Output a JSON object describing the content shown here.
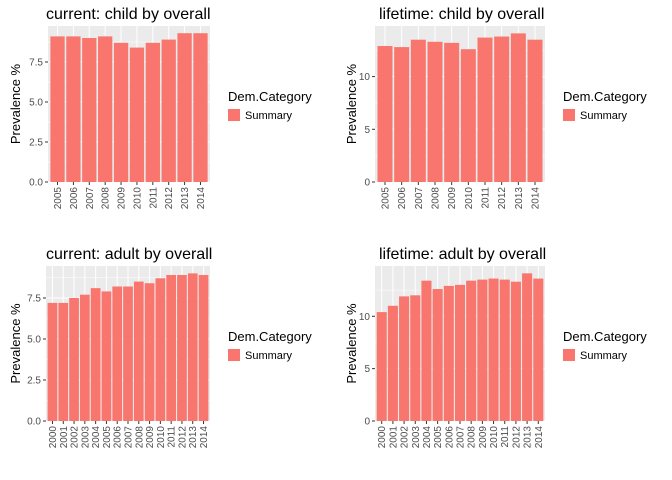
{
  "colors": {
    "bar": "#F8766D",
    "panel_bg": "#EBEBEB",
    "grid": "#FFFFFF",
    "tick": "#333333"
  },
  "chart_data": [
    {
      "type": "bar",
      "title": "current: child by overall",
      "xlabel": "",
      "ylabel": "Prevalence %",
      "categories": [
        "2005",
        "2006",
        "2007",
        "2008",
        "2009",
        "2010",
        "2011",
        "2012",
        "2013",
        "2014"
      ],
      "series": [
        {
          "name": "Summary",
          "values": [
            9.1,
            9.1,
            9.0,
            9.1,
            8.7,
            8.4,
            8.7,
            8.9,
            9.3,
            9.3
          ]
        }
      ],
      "yticks": [
        0,
        2.5,
        5,
        7.5
      ],
      "ytick_labels": [
        "0.0",
        "2.5",
        "5.0",
        "7.5"
      ],
      "ylim": [
        0,
        9.75
      ],
      "legend_title": "Dem.Category",
      "legend_position": "right",
      "grid": true
    },
    {
      "type": "bar",
      "title": "lifetime: child by overall",
      "xlabel": "",
      "ylabel": "Prevalence %",
      "categories": [
        "2005",
        "2006",
        "2007",
        "2008",
        "2009",
        "2010",
        "2011",
        "2012",
        "2013",
        "2014"
      ],
      "series": [
        {
          "name": "Summary",
          "values": [
            12.9,
            12.8,
            13.5,
            13.3,
            13.2,
            12.6,
            13.7,
            13.8,
            14.1,
            13.5
          ]
        }
      ],
      "yticks": [
        0,
        5,
        10
      ],
      "ytick_labels": [
        "0",
        "5",
        "10"
      ],
      "ylim": [
        0,
        14.8
      ],
      "legend_title": "Dem.Category",
      "legend_position": "right",
      "grid": true
    },
    {
      "type": "bar",
      "title": "current: adult by overall",
      "xlabel": "",
      "ylabel": "Prevalence %",
      "categories": [
        "2000",
        "2001",
        "2002",
        "2003",
        "2004",
        "2005",
        "2006",
        "2007",
        "2008",
        "2009",
        "2010",
        "2011",
        "2012",
        "2013",
        "2014"
      ],
      "series": [
        {
          "name": "Summary",
          "values": [
            7.2,
            7.2,
            7.5,
            7.7,
            8.1,
            7.9,
            8.2,
            8.2,
            8.5,
            8.4,
            8.7,
            8.9,
            8.9,
            9.0,
            8.9
          ]
        }
      ],
      "yticks": [
        0,
        2.5,
        5,
        7.5
      ],
      "ytick_labels": [
        "0.0",
        "2.5",
        "5.0",
        "7.5"
      ],
      "ylim": [
        0,
        9.45
      ],
      "legend_title": "Dem.Category",
      "legend_position": "right",
      "grid": true
    },
    {
      "type": "bar",
      "title": "lifetime: adult by overall",
      "xlabel": "",
      "ylabel": "Prevalence %",
      "categories": [
        "2000",
        "2001",
        "2002",
        "2003",
        "2004",
        "2005",
        "2006",
        "2007",
        "2008",
        "2009",
        "2010",
        "2011",
        "2012",
        "2013",
        "2014"
      ],
      "series": [
        {
          "name": "Summary",
          "values": [
            10.4,
            11.0,
            11.9,
            12.0,
            13.4,
            12.6,
            12.9,
            13.0,
            13.4,
            13.5,
            13.6,
            13.5,
            13.3,
            14.1,
            13.6
          ]
        }
      ],
      "yticks": [
        0,
        5,
        10
      ],
      "ytick_labels": [
        "0",
        "5",
        "10"
      ],
      "ylim": [
        0,
        14.8
      ],
      "legend_title": "Dem.Category",
      "legend_position": "right",
      "grid": true
    }
  ]
}
